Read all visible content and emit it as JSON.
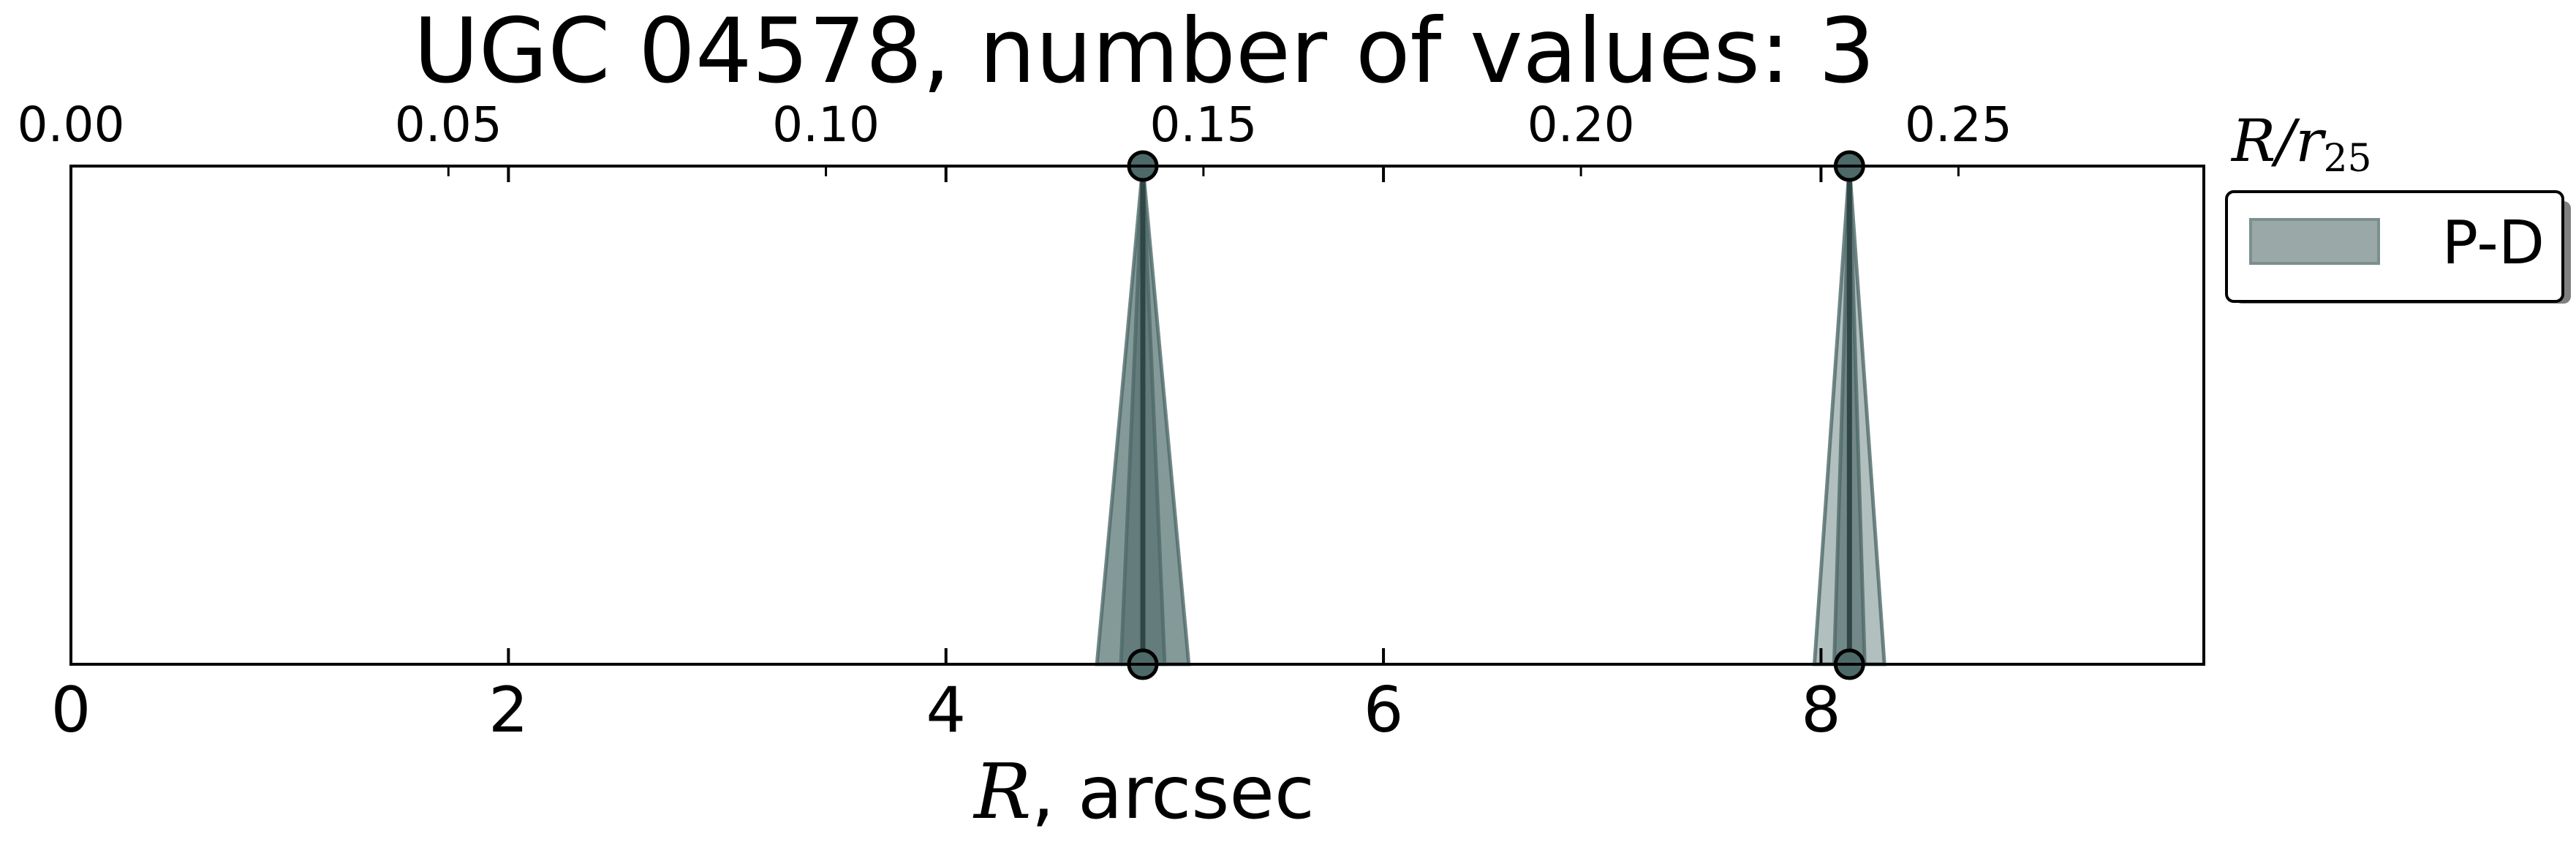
{
  "chart_data": {
    "type": "line",
    "title": "UGC 04578, number of values: 3",
    "xlabel_math": "R",
    "xlabel_rest": ", arcsec",
    "top_xlabel_main": "R/r",
    "top_xlabel_sub": "25",
    "xlim": [
      0,
      9.75
    ],
    "bottom_ticks": [
      0,
      2,
      4,
      6,
      8
    ],
    "bottom_tick_labels": [
      "0",
      "2",
      "4",
      "6",
      "8"
    ],
    "top_xlim": [
      0,
      0.2825
    ],
    "top_ticks": [
      0,
      0.05,
      0.1,
      0.15,
      0.2,
      0.25
    ],
    "top_tick_labels": [
      "0.00",
      "0.05",
      "0.10",
      "0.15",
      "0.20",
      "0.25"
    ],
    "legend": {
      "label": "P-D",
      "color": "#9aa9a8",
      "placement": "upper-right-outside"
    },
    "series": [
      {
        "name": "P-D",
        "points": [
          {
            "x": 4.9,
            "half_width": 0.21,
            "color": "#5b7877",
            "opacity": 0.75
          },
          {
            "x": 4.9,
            "half_width": 0.1,
            "color": "#4a6665",
            "opacity": 0.55
          },
          {
            "x": 8.13,
            "half_width": 0.16,
            "color": "#7e9594",
            "opacity": 0.6
          },
          {
            "x": 8.13,
            "half_width": 0.07,
            "color": "#4a6665",
            "opacity": 0.6
          }
        ]
      }
    ],
    "markers": [
      4.9,
      8.13
    ],
    "grid": false
  }
}
